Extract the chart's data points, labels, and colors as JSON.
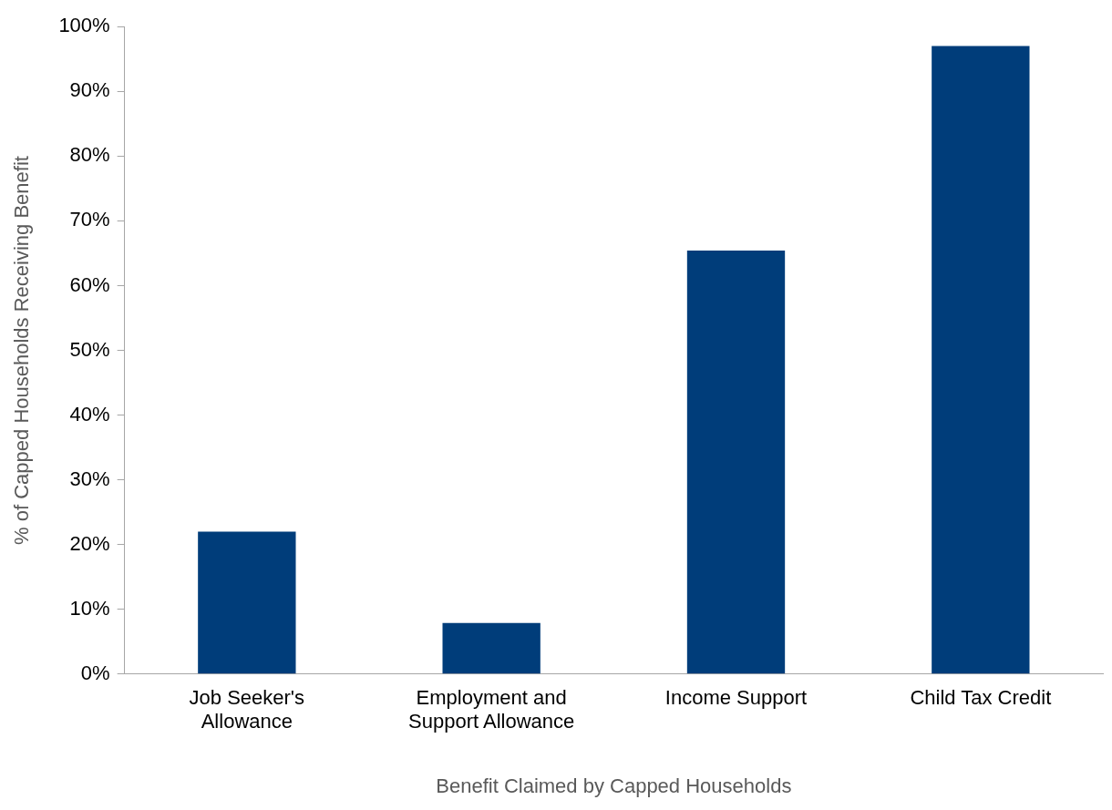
{
  "chart_data": {
    "type": "bar",
    "xlabel": "Benefit Claimed by Capped Households",
    "ylabel": "% of Capped Households Receiving Benefit",
    "categories": [
      "Job Seeker's Allowance",
      "Employment and Support Allowance",
      "Income Support",
      "Child Tax Credit"
    ],
    "values": [
      22,
      7.9,
      65.4,
      97
    ],
    "color": "#003d7a",
    "ylim": [
      0,
      100
    ],
    "yticks": [
      {
        "value": 0,
        "label": "0%"
      },
      {
        "value": 10,
        "label": "10%"
      },
      {
        "value": 20,
        "label": "20%"
      },
      {
        "value": 30,
        "label": "30%"
      },
      {
        "value": 40,
        "label": "40%"
      },
      {
        "value": 50,
        "label": "50%"
      },
      {
        "value": 60,
        "label": "60%"
      },
      {
        "value": 70,
        "label": "70%"
      },
      {
        "value": 80,
        "label": "80%"
      },
      {
        "value": 90,
        "label": "90%"
      },
      {
        "value": 100,
        "label": "100%"
      }
    ],
    "grid": false,
    "legend": false
  }
}
